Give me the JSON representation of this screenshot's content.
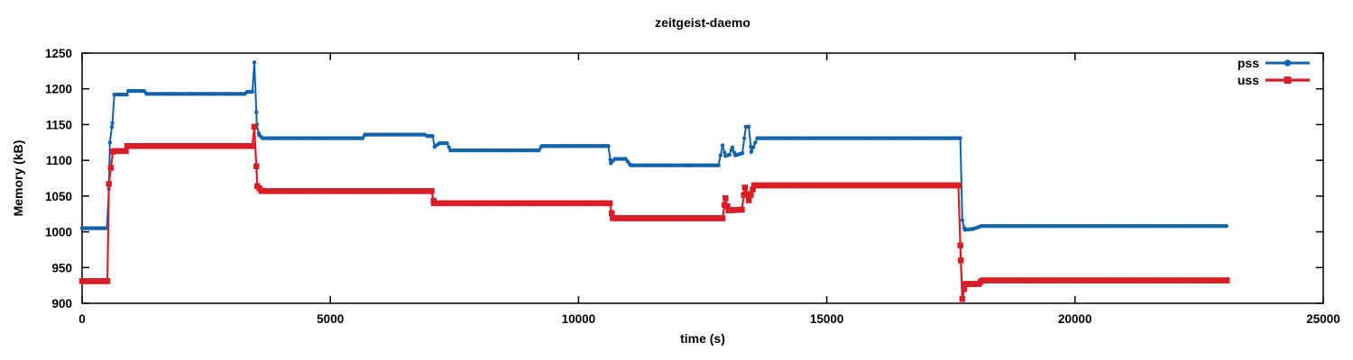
{
  "chart_data": {
    "type": "line",
    "title": "zeitgeist-daemo",
    "xlabel": "time (s)",
    "ylabel": "Memory (kB)",
    "xlim": [
      0,
      25000
    ],
    "ylim": [
      900,
      1250
    ],
    "x_ticks": [
      0,
      5000,
      10000,
      15000,
      20000,
      25000
    ],
    "y_ticks": [
      900,
      950,
      1000,
      1050,
      1100,
      1150,
      1200,
      1250
    ],
    "grid": false,
    "legend_position": "top-right-inside",
    "border": "box-with-mirrored-ticks",
    "sample_interval_s": 40,
    "series": [
      {
        "name": "pss",
        "color": "#1263ac",
        "marker": "circle",
        "marker_size": 2.2,
        "line_width": 2,
        "points": [
          [
            0,
            1005
          ],
          [
            500,
            1005
          ],
          [
            540,
            1060
          ],
          [
            560,
            1125
          ],
          [
            610,
            1152
          ],
          [
            650,
            1192
          ],
          [
            900,
            1192
          ],
          [
            930,
            1197
          ],
          [
            1250,
            1197
          ],
          [
            1300,
            1193
          ],
          [
            3280,
            1193
          ],
          [
            3330,
            1196
          ],
          [
            3430,
            1196
          ],
          [
            3470,
            1237
          ],
          [
            3520,
            1150
          ],
          [
            3570,
            1135
          ],
          [
            3640,
            1131
          ],
          [
            5650,
            1131
          ],
          [
            5700,
            1136
          ],
          [
            6900,
            1136
          ],
          [
            6950,
            1134
          ],
          [
            7060,
            1134
          ],
          [
            7100,
            1119
          ],
          [
            7200,
            1124
          ],
          [
            7350,
            1124
          ],
          [
            7420,
            1114
          ],
          [
            9200,
            1114
          ],
          [
            9260,
            1120
          ],
          [
            10600,
            1120
          ],
          [
            10650,
            1096
          ],
          [
            10730,
            1102
          ],
          [
            10950,
            1102
          ],
          [
            11050,
            1093
          ],
          [
            12820,
            1093
          ],
          [
            12900,
            1121
          ],
          [
            12960,
            1106
          ],
          [
            13040,
            1108
          ],
          [
            13100,
            1118
          ],
          [
            13160,
            1107
          ],
          [
            13300,
            1110
          ],
          [
            13370,
            1147
          ],
          [
            13430,
            1147
          ],
          [
            13480,
            1112
          ],
          [
            13600,
            1131
          ],
          [
            17690,
            1131
          ],
          [
            17730,
            1016
          ],
          [
            17780,
            1003
          ],
          [
            17950,
            1004
          ],
          [
            18110,
            1008
          ],
          [
            23050,
            1008
          ]
        ]
      },
      {
        "name": "uss",
        "color": "#d81e26",
        "marker": "square",
        "marker_size": 6.5,
        "line_width": 2.2,
        "points": [
          [
            0,
            931
          ],
          [
            510,
            931
          ],
          [
            540,
            1067
          ],
          [
            620,
            1112
          ],
          [
            650,
            1113
          ],
          [
            880,
            1113
          ],
          [
            910,
            1120
          ],
          [
            3430,
            1120
          ],
          [
            3470,
            1147
          ],
          [
            3530,
            1064
          ],
          [
            3620,
            1057
          ],
          [
            7040,
            1057
          ],
          [
            7090,
            1040
          ],
          [
            10630,
            1040
          ],
          [
            10690,
            1019
          ],
          [
            12900,
            1019
          ],
          [
            12960,
            1047
          ],
          [
            13020,
            1030
          ],
          [
            13290,
            1031
          ],
          [
            13350,
            1062
          ],
          [
            13430,
            1044
          ],
          [
            13540,
            1065
          ],
          [
            17650,
            1065
          ],
          [
            17700,
            960
          ],
          [
            17730,
            906
          ],
          [
            17790,
            927
          ],
          [
            18060,
            927
          ],
          [
            18130,
            932
          ],
          [
            23060,
            932
          ]
        ]
      }
    ]
  }
}
